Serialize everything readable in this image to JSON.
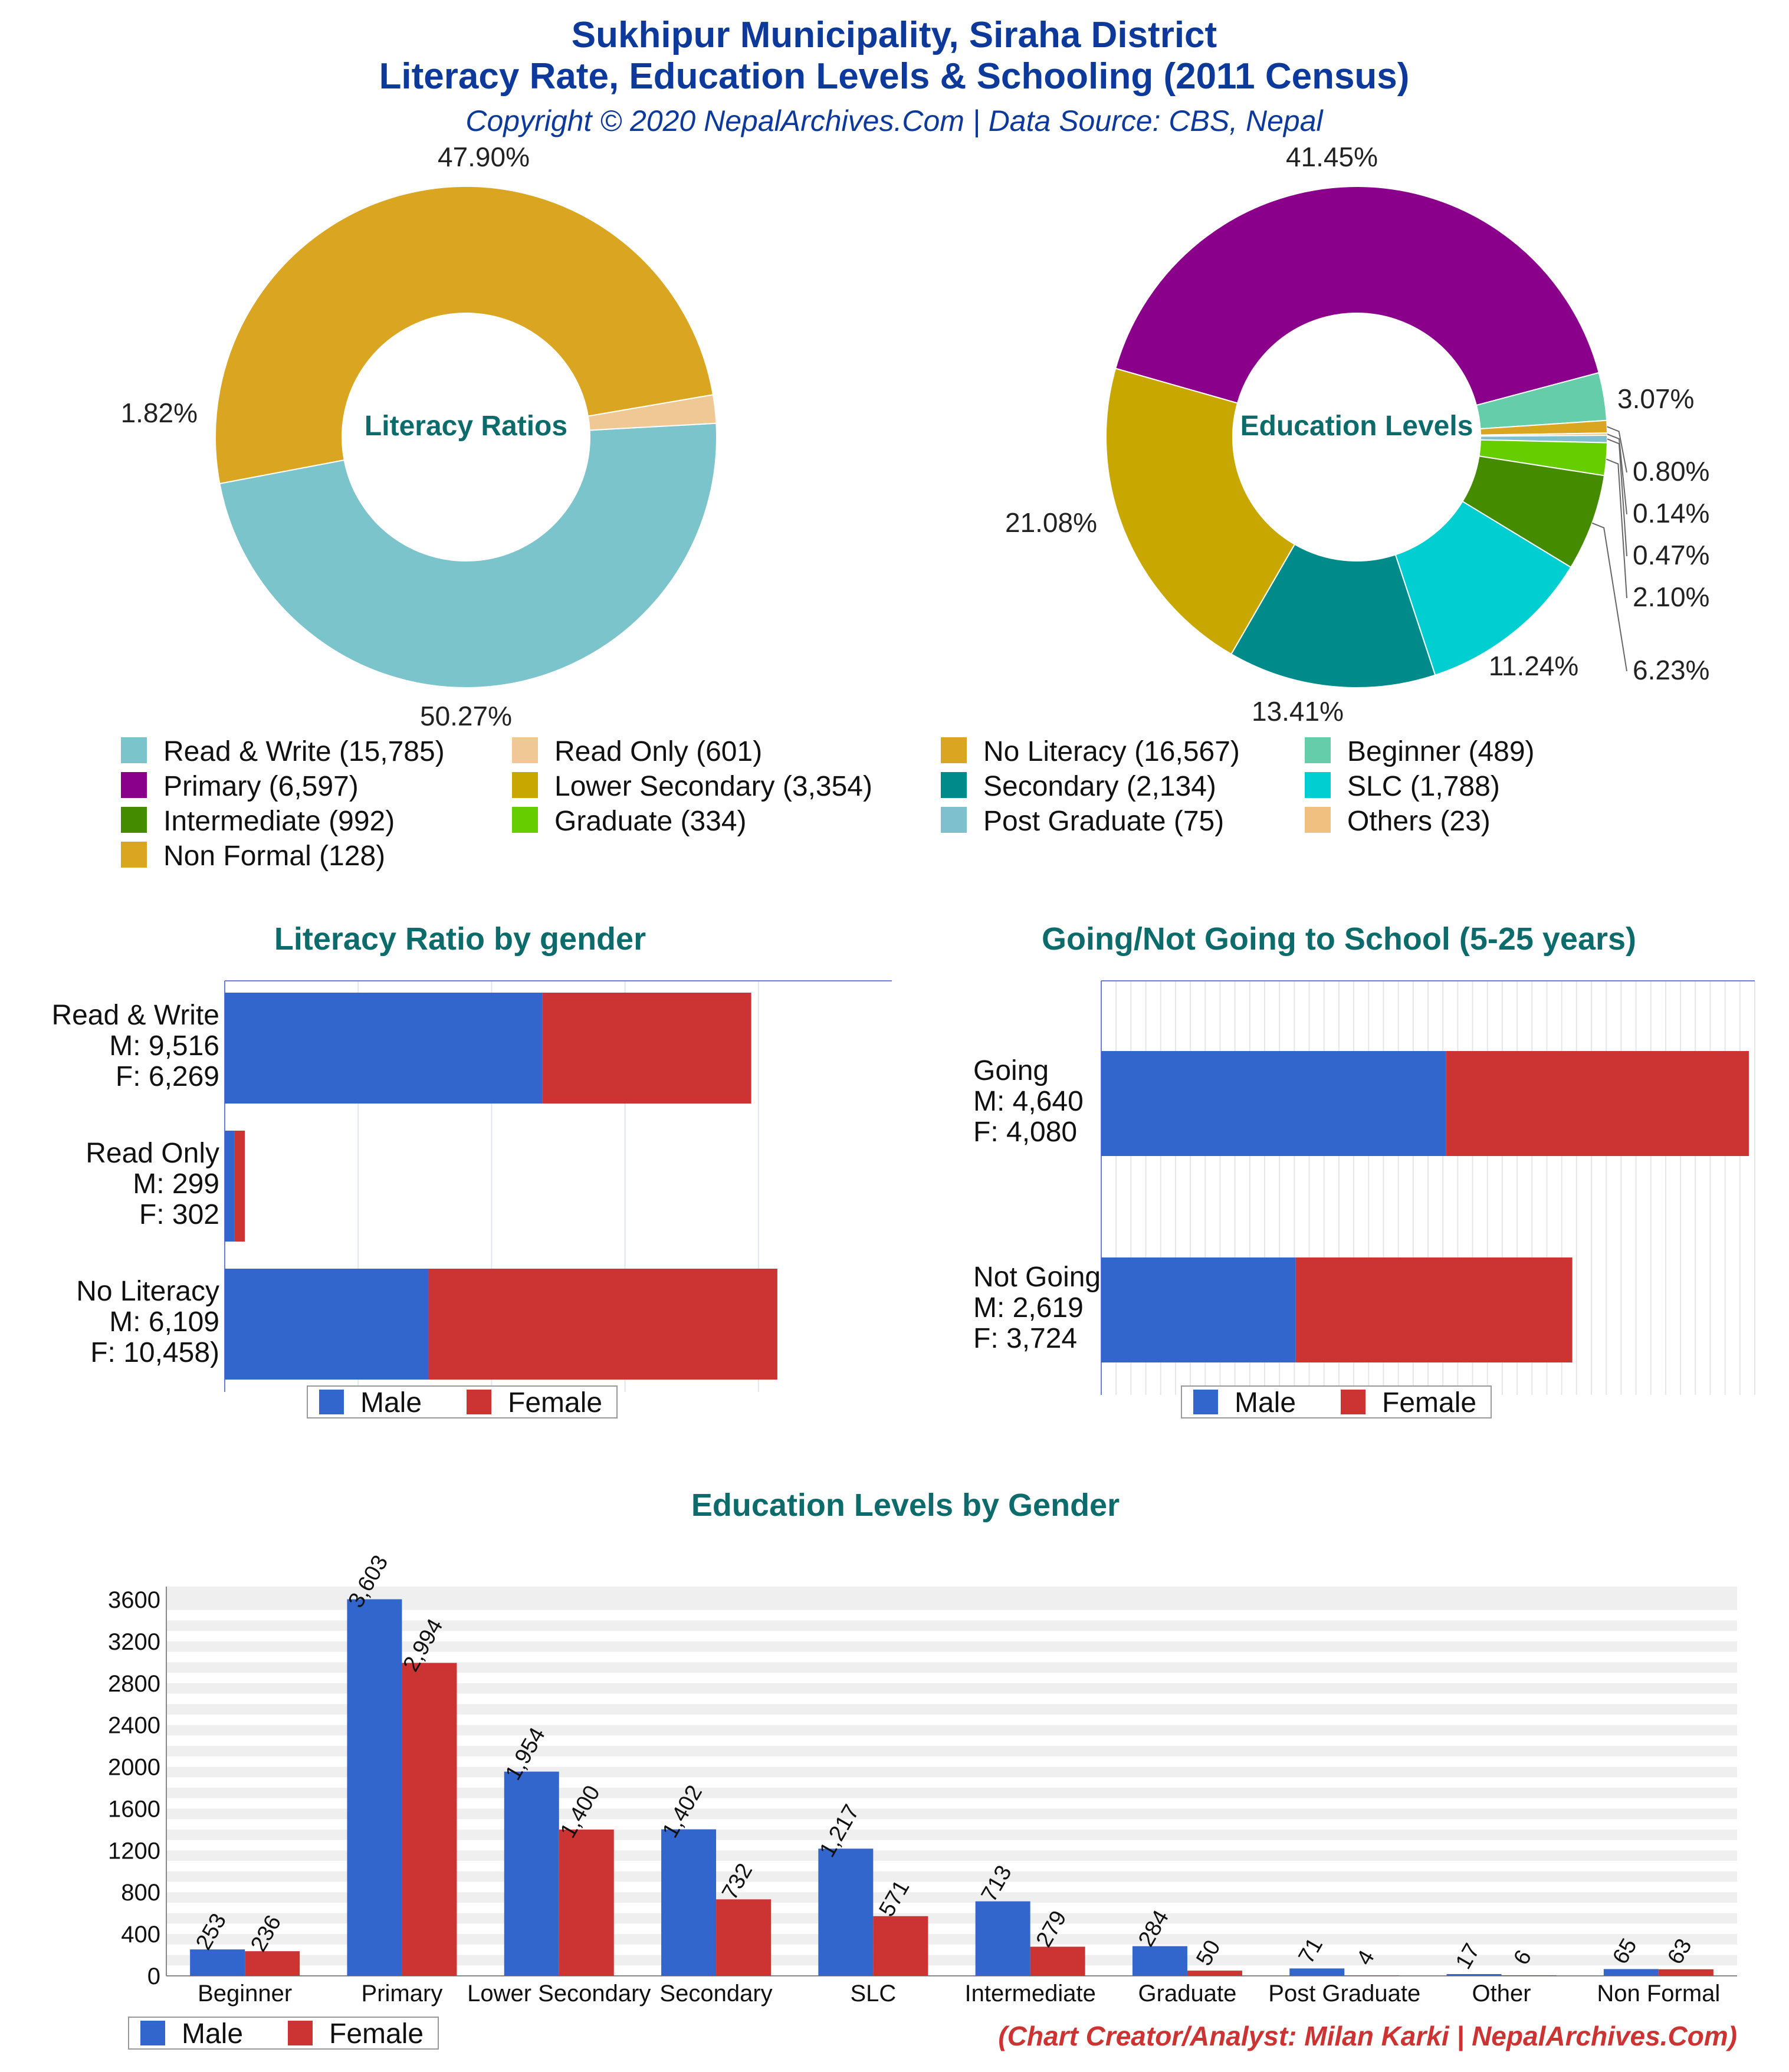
{
  "header": {
    "title_line1": "Sukhipur Municipality, Siraha District",
    "title_line2": "Literacy Rate, Education Levels & Schooling (2011 Census)",
    "copyright": "Copyright © 2020 NepalArchives.Com | Data Source: CBS, Nepal"
  },
  "colors": {
    "title": "#0d3a9a",
    "section_title": "#0e6b6b",
    "male": "#3366cc",
    "female": "#cc3333",
    "credit": "#cc3333"
  },
  "legend": {
    "male": "Male",
    "female": "Female"
  },
  "pie_legend": [
    {
      "label": "Read & Write (15,785)",
      "color": "#7cc4cc"
    },
    {
      "label": "Read Only (601)",
      "color": "#f0c896"
    },
    {
      "label": "No Literacy (16,567)",
      "color": "#daa520"
    },
    {
      "label": "Beginner (489)",
      "color": "#66cdaa"
    },
    {
      "label": "Primary (6,597)",
      "color": "#8b008b"
    },
    {
      "label": "Lower Secondary (3,354)",
      "color": "#c8a800"
    },
    {
      "label": "Secondary (2,134)",
      "color": "#008b8b"
    },
    {
      "label": "SLC (1,788)",
      "color": "#00ced1"
    },
    {
      "label": "Intermediate (992)",
      "color": "#458b00"
    },
    {
      "label": "Graduate (334)",
      "color": "#66cd00"
    },
    {
      "label": "Post Graduate (75)",
      "color": "#7ec0ce"
    },
    {
      "label": "Others (23)",
      "color": "#f0c080"
    },
    {
      "label": "Non Formal (128)",
      "color": "#daa520"
    }
  ],
  "footer": {
    "credit": "(Chart Creator/Analyst: Milan Karki | NepalArchives.Com)"
  },
  "chart_data": [
    {
      "type": "pie",
      "title": "Literacy Ratios",
      "slices": [
        {
          "label": "Read & Write",
          "value": 15785,
          "percent_label": "47.90%",
          "color": "#7cc4cc"
        },
        {
          "label": "No Literacy",
          "value": 16567,
          "percent_label": "50.27%",
          "color": "#daa520"
        },
        {
          "label": "Read Only",
          "value": 601,
          "percent_label": "1.82%",
          "color": "#f0c896"
        }
      ]
    },
    {
      "type": "pie",
      "title": "Education Levels",
      "slices": [
        {
          "label": "Primary",
          "value": 6597,
          "percent_label": "41.45%",
          "color": "#8b008b"
        },
        {
          "label": "Beginner",
          "value": 489,
          "percent_label": "3.07%",
          "color": "#66cdaa"
        },
        {
          "label": "Non Formal",
          "value": 128,
          "percent_label": "0.80%",
          "color": "#daa520"
        },
        {
          "label": "Others",
          "value": 23,
          "percent_label": "0.14%",
          "color": "#f0c080"
        },
        {
          "label": "Post Graduate",
          "value": 75,
          "percent_label": "0.47%",
          "color": "#7ec0ce"
        },
        {
          "label": "Graduate",
          "value": 334,
          "percent_label": "2.10%",
          "color": "#66cd00"
        },
        {
          "label": "Intermediate",
          "value": 992,
          "percent_label": "6.23%",
          "color": "#458b00"
        },
        {
          "label": "SLC",
          "value": 1788,
          "percent_label": "11.24%",
          "color": "#00ced1"
        },
        {
          "label": "Secondary",
          "value": 2134,
          "percent_label": "13.41%",
          "color": "#008b8b"
        },
        {
          "label": "Lower Secondary",
          "value": 3354,
          "percent_label": "21.08%",
          "color": "#c8a800"
        }
      ]
    },
    {
      "type": "bar",
      "orientation": "horizontal",
      "stacked": true,
      "title": "Literacy Ratio by gender",
      "categories": [
        "Read & Write",
        "Read Only",
        "No Literacy"
      ],
      "category_labels": [
        [
          "Read & Write",
          "M: 9,516",
          "F: 6,269"
        ],
        [
          "Read Only",
          "M: 299",
          "F: 302"
        ],
        [
          "No Literacy",
          "M: 6,109",
          "F: 10,458)"
        ]
      ],
      "series": [
        {
          "name": "Male",
          "values": [
            9516,
            299,
            6109
          ]
        },
        {
          "name": "Female",
          "values": [
            6269,
            302,
            10458
          ]
        }
      ],
      "xlim": [
        0,
        20000
      ]
    },
    {
      "type": "bar",
      "orientation": "horizontal",
      "stacked": true,
      "title": "Going/Not Going to School (5-25 years)",
      "categories": [
        "Going",
        "Not Going"
      ],
      "category_labels": [
        [
          "Going",
          "M: 4,640",
          "F: 4,080"
        ],
        [
          "Not Going",
          "M: 2,619",
          "F: 3,724"
        ]
      ],
      "series": [
        {
          "name": "Male",
          "values": [
            4640,
            2619
          ]
        },
        {
          "name": "Female",
          "values": [
            4080,
            3724
          ]
        }
      ],
      "xlim": [
        0,
        8800
      ]
    },
    {
      "type": "bar",
      "title": "Education Levels by Gender",
      "categories": [
        "Beginner",
        "Primary",
        "Lower Secondary",
        "Secondary",
        "SLC",
        "Intermediate",
        "Graduate",
        "Post Graduate",
        "Other",
        "Non Formal"
      ],
      "series": [
        {
          "name": "Male",
          "values": [
            253,
            3603,
            1954,
            1402,
            1217,
            713,
            284,
            71,
            17,
            65
          ]
        },
        {
          "name": "Female",
          "values": [
            236,
            2994,
            1400,
            732,
            571,
            279,
            50,
            4,
            6,
            63
          ]
        }
      ],
      "value_labels": {
        "Male": [
          "253",
          "3,603",
          "1,954",
          "1,402",
          "1,217",
          "713",
          "284",
          "71",
          "17",
          "65"
        ],
        "Female": [
          "236",
          "2,994",
          "1,400",
          "732",
          "571",
          "279",
          "50",
          "4",
          "6",
          "63"
        ]
      },
      "yticks": [
        0,
        400,
        800,
        1200,
        1600,
        2000,
        2400,
        2800,
        3200,
        3600
      ],
      "ylim": [
        0,
        3600
      ],
      "grid": true,
      "legend_position": "bottom-left"
    }
  ]
}
